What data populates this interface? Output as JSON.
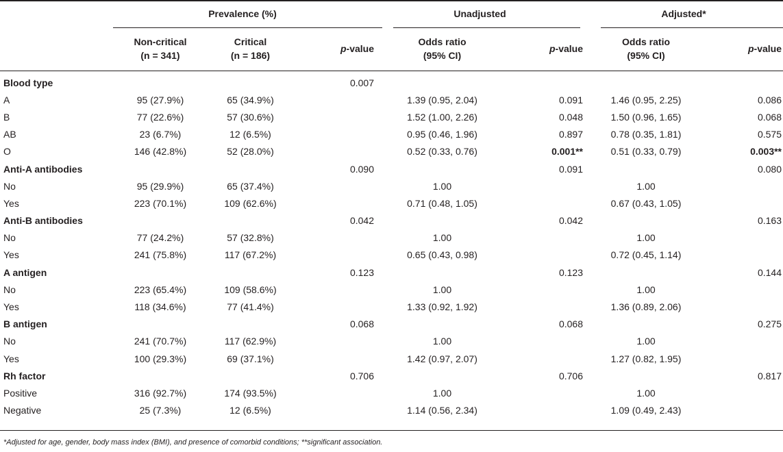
{
  "header": {
    "group_prevalence": "Prevalence (%)",
    "group_unadjusted": "Unadjusted",
    "group_adjusted": "Adjusted*",
    "noncritical_line1": "Non-critical",
    "noncritical_line2": "(n = 341)",
    "critical_line1": "Critical",
    "critical_line2": "(n = 186)",
    "p_italic": "p",
    "p_rest": "-value",
    "or_line1": "Odds ratio",
    "or_line2": "(95% CI)"
  },
  "rows": [
    {
      "label": "Blood type",
      "category": true,
      "noncrit": "",
      "crit": "",
      "p": "0.007",
      "or_u": "",
      "p_u": "",
      "or_a": "",
      "p_a": ""
    },
    {
      "label": "A",
      "category": false,
      "noncrit": "95 (27.9%)",
      "crit": "65 (34.9%)",
      "p": "",
      "or_u": "1.39 (0.95, 2.04)",
      "p_u": "0.091",
      "or_a": "1.46 (0.95, 2.25)",
      "p_a": "0.086"
    },
    {
      "label": "B",
      "category": false,
      "noncrit": "77 (22.6%)",
      "crit": "57 (30.6%)",
      "p": "",
      "or_u": "1.52 (1.00, 2.26)",
      "p_u": "0.048",
      "or_a": "1.50 (0.96, 1.65)",
      "p_a": "0.068"
    },
    {
      "label": "AB",
      "category": false,
      "noncrit": "23 (6.7%)",
      "crit": "12 (6.5%)",
      "p": "",
      "or_u": "0.95 (0.46, 1.96)",
      "p_u": "0.897",
      "or_a": "0.78 (0.35, 1.81)",
      "p_a": "0.575"
    },
    {
      "label": "O",
      "category": false,
      "noncrit": "146 (42.8%)",
      "crit": "52 (28.0%)",
      "p": "",
      "or_u": "0.52 (0.33, 0.76)",
      "p_u": "0.001**",
      "p_u_bold": true,
      "or_a": "0.51 (0.33, 0.79)",
      "p_a": "0.003**",
      "p_a_bold": true
    },
    {
      "label": "Anti-A antibodies",
      "category": true,
      "noncrit": "",
      "crit": "",
      "p": "0.090",
      "or_u": "",
      "p_u": "0.091",
      "or_a": "",
      "p_a": "0.080"
    },
    {
      "label": "No",
      "category": false,
      "noncrit": "95 (29.9%)",
      "crit": "65 (37.4%)",
      "p": "",
      "or_u": "1.00",
      "p_u": "",
      "or_a": "1.00",
      "p_a": ""
    },
    {
      "label": "Yes",
      "category": false,
      "noncrit": "223 (70.1%)",
      "crit": "109 (62.6%)",
      "p": "",
      "or_u": "0.71 (0.48, 1.05)",
      "p_u": "",
      "or_a": "0.67 (0.43, 1.05)",
      "p_a": ""
    },
    {
      "label": "Anti-B antibodies",
      "category": true,
      "noncrit": "",
      "crit": "",
      "p": "0.042",
      "or_u": "",
      "p_u": "0.042",
      "or_a": "",
      "p_a": "0.163"
    },
    {
      "label": "No",
      "category": false,
      "noncrit": "77 (24.2%)",
      "crit": "57 (32.8%)",
      "p": "",
      "or_u": "1.00",
      "p_u": "",
      "or_a": "1.00",
      "p_a": ""
    },
    {
      "label": "Yes",
      "category": false,
      "noncrit": "241 (75.8%)",
      "crit": "117 (67.2%)",
      "p": "",
      "or_u": "0.65 (0.43, 0.98)",
      "p_u": "",
      "or_a": "0.72 (0.45, 1.14)",
      "p_a": ""
    },
    {
      "label": "A antigen",
      "category": true,
      "noncrit": "",
      "crit": "",
      "p": "0.123",
      "or_u": "",
      "p_u": "0.123",
      "or_a": "",
      "p_a": "0.144"
    },
    {
      "label": "No",
      "category": false,
      "noncrit": "223 (65.4%)",
      "crit": "109 (58.6%)",
      "p": "",
      "or_u": "1.00",
      "p_u": "",
      "or_a": "1.00",
      "p_a": ""
    },
    {
      "label": "Yes",
      "category": false,
      "noncrit": "118 (34.6%)",
      "crit": "77 (41.4%)",
      "p": "",
      "or_u": "1.33 (0.92, 1.92)",
      "p_u": "",
      "or_a": "1.36 (0.89, 2.06)",
      "p_a": ""
    },
    {
      "label": "B antigen",
      "category": true,
      "noncrit": "",
      "crit": "",
      "p": "0.068",
      "or_u": "",
      "p_u": "0.068",
      "or_a": "",
      "p_a": "0.275"
    },
    {
      "label": "No",
      "category": false,
      "noncrit": "241 (70.7%)",
      "crit": "117 (62.9%)",
      "p": "",
      "or_u": "1.00",
      "p_u": "",
      "or_a": "1.00",
      "p_a": ""
    },
    {
      "label": "Yes",
      "category": false,
      "noncrit": "100 (29.3%)",
      "crit": "69 (37.1%)",
      "p": "",
      "or_u": "1.42 (0.97, 2.07)",
      "p_u": "",
      "or_a": "1.27 (0.82, 1.95)",
      "p_a": ""
    },
    {
      "label": "Rh factor",
      "category": true,
      "noncrit": "",
      "crit": "",
      "p": "0.706",
      "or_u": "",
      "p_u": "0.706",
      "or_a": "",
      "p_a": "0.817"
    },
    {
      "label": "Positive",
      "category": false,
      "noncrit": "316 (92.7%)",
      "crit": "174 (93.5%)",
      "p": "",
      "or_u": "1.00",
      "p_u": "",
      "or_a": "1.00",
      "p_a": ""
    },
    {
      "label": "Negative",
      "category": false,
      "noncrit": "25 (7.3%)",
      "crit": "12 (6.5%)",
      "p": "",
      "or_u": "1.14 (0.56, 2.34)",
      "p_u": "",
      "or_a": "1.09 (0.49, 2.43)",
      "p_a": ""
    }
  ],
  "footnote": "*Adjusted for age, gender, body mass index (BMI), and presence of comorbid conditions; **significant association."
}
